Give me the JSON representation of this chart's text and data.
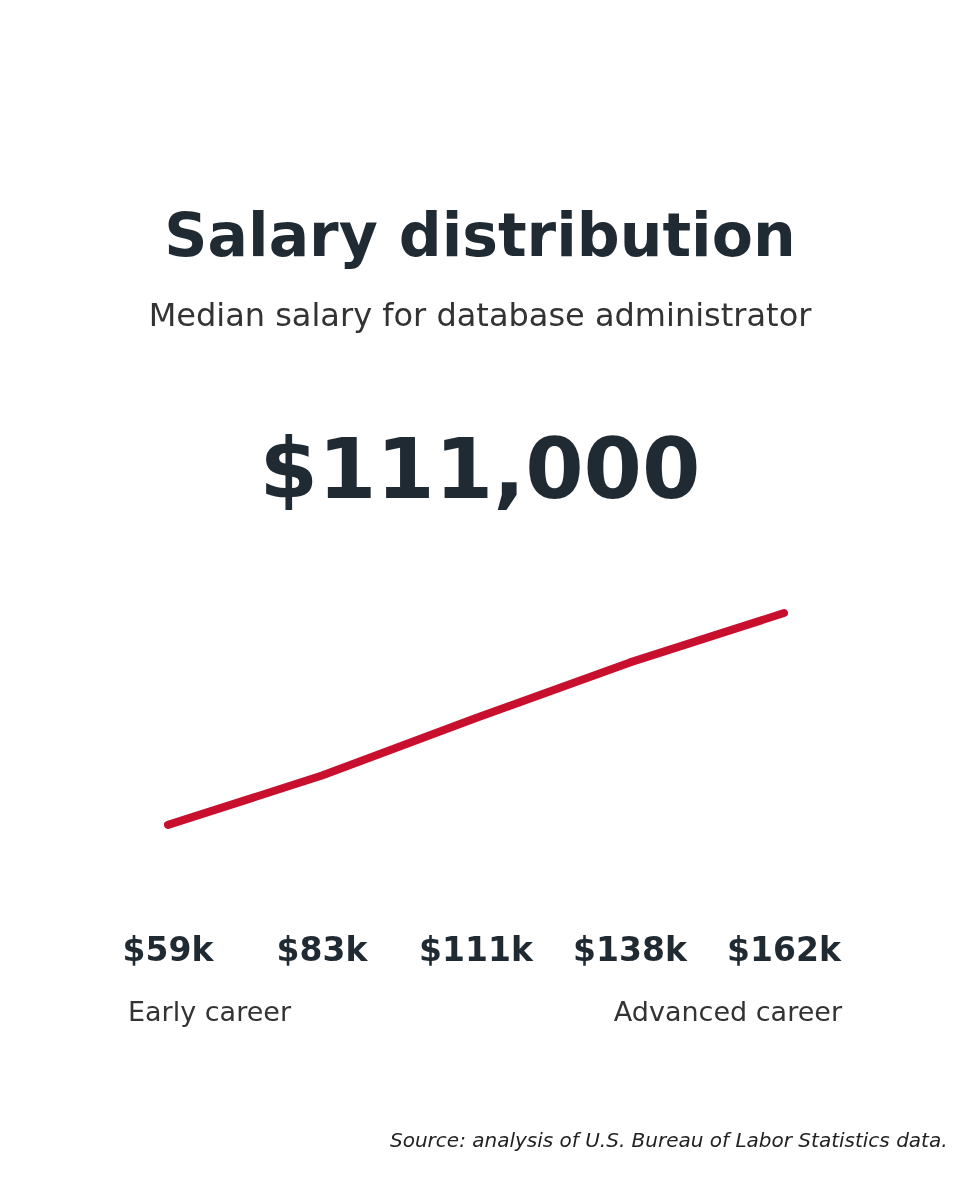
{
  "chart_data": {
    "type": "line",
    "title": "Salary distribution",
    "subtitle": "Median salary for database administrator",
    "categories": [
      null,
      null,
      null,
      null,
      null
    ],
    "series": [
      {
        "color": "#c8102e",
        "values": [
          59,
          83,
          111,
          138,
          162
        ],
        "value_labels": [
          "$59k",
          "$83k",
          "$111k",
          "$138k",
          "$162k"
        ]
      }
    ],
    "annotations": [
      "$111,000",
      "Early career",
      "Advanced career",
      "Source: analysis of U.S. Bureau of Labor Statistics data."
    ],
    "legend": false
  }
}
